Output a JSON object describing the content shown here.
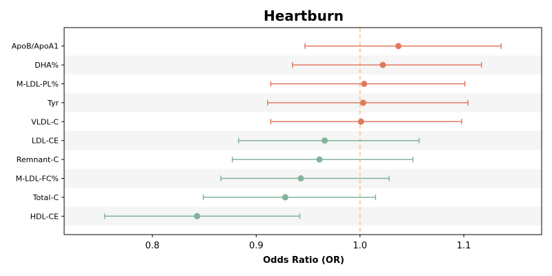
{
  "chart_data": {
    "type": "forest",
    "title": "Heartburn",
    "xlabel": "Odds Ratio (OR)",
    "ylabel": "",
    "xlim": [
      0.715,
      1.175
    ],
    "xticks": [
      0.8,
      0.9,
      1.0,
      1.1
    ],
    "xtick_labels": [
      "0.8",
      "0.9",
      "1.0",
      "1.1"
    ],
    "reference_line": 1.0,
    "reference_color": "#f5c08a",
    "positive_color": "#e07a5f",
    "negative_color": "#81b29a",
    "stripe_color": "#f5f5f5",
    "grid": false,
    "rows": [
      {
        "label": "ApoB/ApoA1",
        "or": 1.037,
        "lo": 0.947,
        "hi": 1.136
      },
      {
        "label": "DHA%",
        "or": 1.022,
        "lo": 0.935,
        "hi": 1.117
      },
      {
        "label": "M-LDL-PL%",
        "or": 1.004,
        "lo": 0.914,
        "hi": 1.101
      },
      {
        "label": "Tyr",
        "or": 1.003,
        "lo": 0.911,
        "hi": 1.104
      },
      {
        "label": "VLDL-C",
        "or": 1.001,
        "lo": 0.914,
        "hi": 1.098
      },
      {
        "label": "LDL-CE",
        "or": 0.966,
        "lo": 0.883,
        "hi": 1.057
      },
      {
        "label": "Remnant-C",
        "or": 0.961,
        "lo": 0.877,
        "hi": 1.051
      },
      {
        "label": "M-LDL-FC%",
        "or": 0.943,
        "lo": 0.866,
        "hi": 1.028
      },
      {
        "label": "Total-C",
        "or": 0.928,
        "lo": 0.849,
        "hi": 1.015
      },
      {
        "label": "HDL-CE",
        "or": 0.843,
        "lo": 0.754,
        "hi": 0.942
      }
    ]
  }
}
